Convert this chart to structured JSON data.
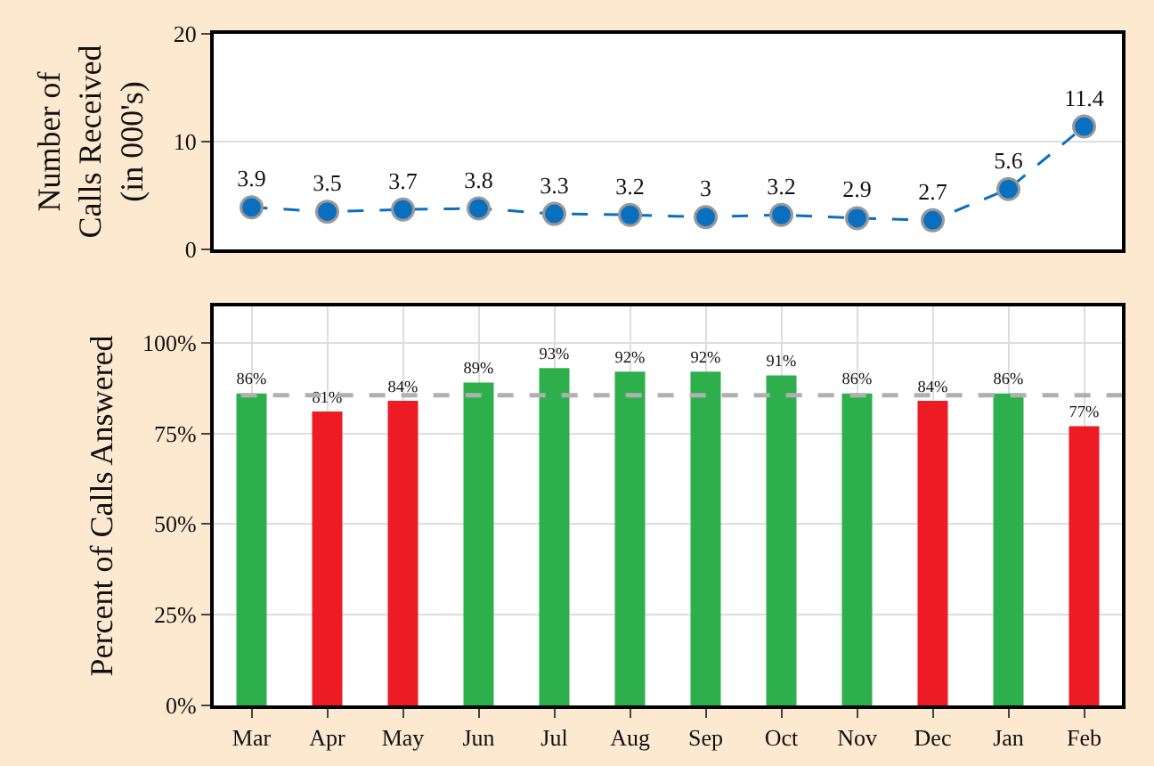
{
  "chart_data": [
    {
      "type": "line",
      "ylabel": "Number of\nCalls Received\n(in 000's)",
      "categories": [
        null,
        null,
        null,
        null,
        null,
        null,
        null,
        null,
        null,
        null,
        null,
        null
      ],
      "series": [
        {
          "color": "#0b6fc0",
          "values": [
            3.9,
            3.5,
            3.7,
            3.8,
            3.3,
            3.2,
            3,
            3.2,
            2.9,
            2.7,
            5.6,
            11.4
          ]
        }
      ],
      "ylim": [
        0,
        20
      ],
      "yticks": [
        0,
        10,
        20
      ],
      "grid": true,
      "marker": "circle",
      "line_style": "dashed",
      "data_labels": true,
      "tick_labels": "y"
    },
    {
      "type": "bar",
      "ylabel": "Percent of Calls Answered",
      "categories": [
        "Mar",
        "Apr",
        "May",
        "Jun",
        "Jul",
        "Aug",
        "Sep",
        "Oct",
        "Nov",
        "Dec",
        "Jan",
        "Feb"
      ],
      "values": [
        86,
        81,
        84,
        89,
        93,
        92,
        92,
        91,
        86,
        84,
        86,
        77
      ],
      "colors": [
        "#2db04b",
        "#ed1c24",
        "#ed1c24",
        "#2db04b",
        "#2db04b",
        "#2db04b",
        "#2db04b",
        "#2db04b",
        "#2db04b",
        "#ed1c24",
        "#2db04b",
        "#ed1c24"
      ],
      "value_labels": [
        "86%",
        "81%",
        "84%",
        "89%",
        "93%",
        "92%",
        "92%",
        "91%",
        "86%",
        "84%",
        "86%",
        "77%"
      ],
      "ylim": [
        0,
        110
      ],
      "yticks": [
        {
          "value": 0,
          "label": "0%"
        },
        {
          "value": 25,
          "label": "25%"
        },
        {
          "value": 50,
          "label": "50%"
        },
        {
          "value": 75,
          "label": "75%"
        },
        {
          "value": 100,
          "label": "100%"
        }
      ],
      "grid": true,
      "ref_lines": [
        {
          "axis": "y",
          "value": 85.5,
          "color": "#b0b0b0",
          "line_style": "dashed"
        }
      ]
    }
  ]
}
